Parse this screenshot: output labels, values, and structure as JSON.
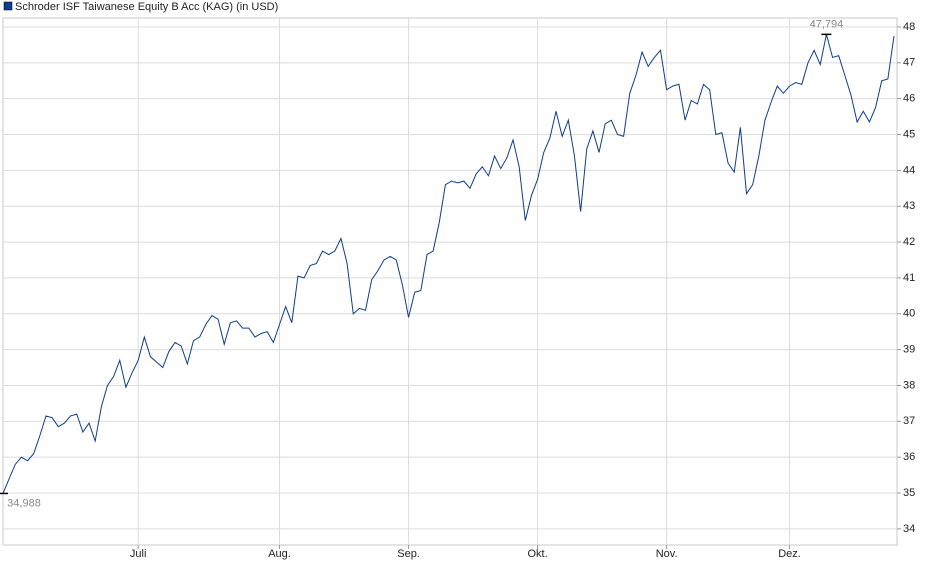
{
  "chart_data": {
    "type": "line",
    "series": [
      {
        "name": "Schroder ISF Taiwanese Equity B Acc (KAG) (in USD)",
        "color": "#0d3d8c",
        "values": [
          34.988,
          35.4,
          35.8,
          36.0,
          35.9,
          36.1,
          36.6,
          37.15,
          37.1,
          36.85,
          36.95,
          37.15,
          37.2,
          36.7,
          36.95,
          36.45,
          37.4,
          38.0,
          38.25,
          38.7,
          37.95,
          38.35,
          38.7,
          39.35,
          38.8,
          38.65,
          38.5,
          38.95,
          39.2,
          39.1,
          38.6,
          39.25,
          39.35,
          39.7,
          39.95,
          39.85,
          39.15,
          39.75,
          39.8,
          39.6,
          39.6,
          39.35,
          39.45,
          39.5,
          39.2,
          39.7,
          40.2,
          39.75,
          41.05,
          41.0,
          41.35,
          41.4,
          41.75,
          41.65,
          41.75,
          42.1,
          41.4,
          40.0,
          40.15,
          40.1,
          40.95,
          41.2,
          41.5,
          41.6,
          41.5,
          40.8,
          39.9,
          40.6,
          40.65,
          41.65,
          41.75,
          42.55,
          43.6,
          43.7,
          43.65,
          43.7,
          43.5,
          43.9,
          44.1,
          43.85,
          44.4,
          44.05,
          44.35,
          44.85,
          44.1,
          42.6,
          43.3,
          43.75,
          44.5,
          44.9,
          45.65,
          44.95,
          45.4,
          44.4,
          42.85,
          44.6,
          45.1,
          44.5,
          45.3,
          45.4,
          45.0,
          44.95,
          46.15,
          46.65,
          47.3,
          46.9,
          47.15,
          47.35,
          46.25,
          46.35,
          46.4,
          45.4,
          45.95,
          45.85,
          46.4,
          46.25,
          45.0,
          45.05,
          44.2,
          43.95,
          45.2,
          43.35,
          43.6,
          44.4,
          45.4,
          45.9,
          46.35,
          46.15,
          46.35,
          46.45,
          46.4,
          47.0,
          47.35,
          46.95,
          47.794,
          47.15,
          47.2,
          46.65,
          46.1,
          45.35,
          45.65,
          45.35,
          45.75,
          46.5,
          46.55,
          47.75
        ]
      }
    ],
    "xlim": [
      0,
      145
    ],
    "xticks": [
      {
        "value": 22,
        "label": "Juli"
      },
      {
        "value": 45,
        "label": "Aug."
      },
      {
        "value": 66,
        "label": "Sep."
      },
      {
        "value": 87,
        "label": "Okt."
      },
      {
        "value": 108,
        "label": "Nov."
      },
      {
        "value": 128,
        "label": "Dez."
      }
    ],
    "ylim": [
      33.55,
      48.25
    ],
    "yticks": [
      34,
      35,
      36,
      37,
      38,
      39,
      40,
      41,
      42,
      43,
      44,
      45,
      46,
      47,
      48
    ],
    "grid": true,
    "legend": "top-left",
    "annotations": [
      {
        "x": 0,
        "label": "34,988",
        "position": "below"
      },
      {
        "x": 134,
        "label": "47,794",
        "position": "above"
      }
    ]
  }
}
